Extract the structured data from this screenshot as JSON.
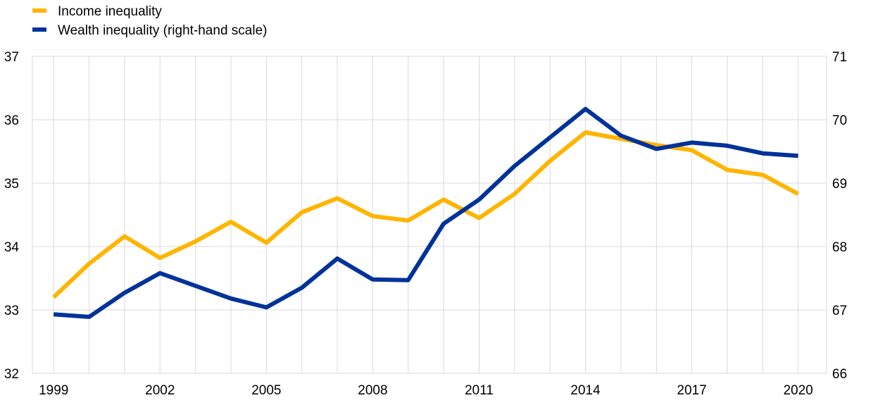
{
  "chart_data": {
    "type": "line",
    "title": "",
    "xlabel": "",
    "ylabel": "",
    "x": [
      1999,
      2000,
      2001,
      2002,
      2003,
      2004,
      2005,
      2006,
      2007,
      2008,
      2009,
      2010,
      2011,
      2012,
      2013,
      2014,
      2015,
      2016,
      2017,
      2018,
      2019,
      2020
    ],
    "x_tick_labels": [
      "1999",
      "2002",
      "2005",
      "2008",
      "2011",
      "2014",
      "2017",
      "2020"
    ],
    "x_tick_values": [
      1999,
      2002,
      2005,
      2008,
      2011,
      2014,
      2017,
      2020
    ],
    "ylim_left": [
      32,
      37
    ],
    "ylim_right": [
      66,
      71
    ],
    "y_left_ticks": [
      "32",
      "33",
      "34",
      "35",
      "36",
      "37"
    ],
    "y_right_ticks": [
      "66",
      "67",
      "68",
      "69",
      "70",
      "71"
    ],
    "grid": true,
    "legend_position": "top-left",
    "series": [
      {
        "name": "Income inequality",
        "axis": "left",
        "color": "#FFB400",
        "values": [
          33.2,
          33.73,
          34.16,
          33.82,
          34.08,
          34.39,
          34.06,
          34.54,
          34.76,
          34.48,
          34.41,
          34.74,
          34.45,
          34.83,
          35.35,
          35.8,
          35.7,
          35.6,
          35.52,
          35.21,
          35.13,
          34.83
        ]
      },
      {
        "name": "Wealth inequality (right-hand scale)",
        "axis": "right",
        "color": "#003299",
        "values": [
          66.93,
          66.89,
          67.27,
          67.58,
          67.38,
          67.18,
          67.04,
          67.35,
          67.81,
          67.48,
          67.47,
          68.36,
          68.74,
          69.27,
          69.72,
          70.17,
          69.75,
          69.54,
          69.64,
          69.59,
          69.47,
          69.43
        ]
      }
    ]
  }
}
